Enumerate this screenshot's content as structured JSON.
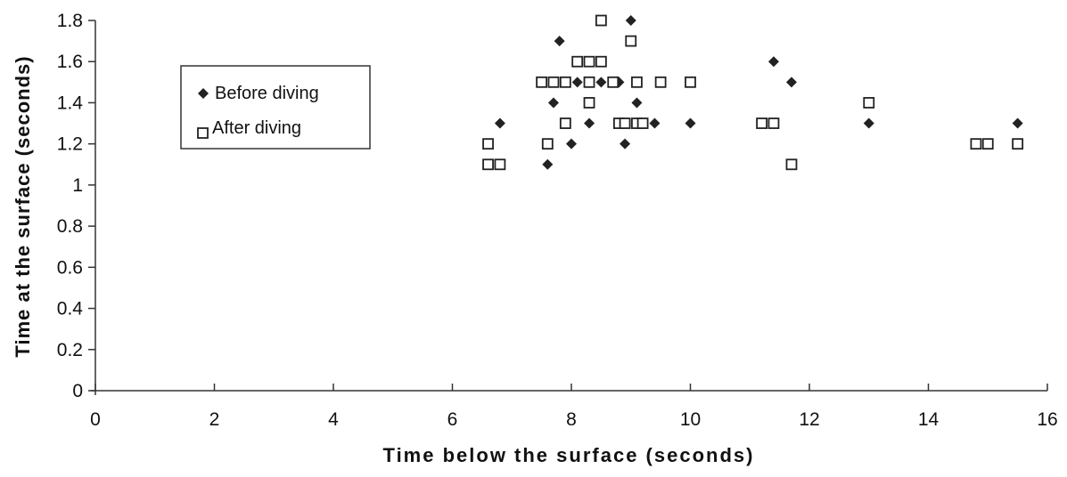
{
  "chart_data": {
    "type": "scatter",
    "title": "",
    "xlabel": "Time below the surface (seconds)",
    "ylabel": "Time at the surface (seconds)",
    "xlim": [
      0,
      16
    ],
    "ylim": [
      0,
      1.8
    ],
    "x_ticks": [
      0,
      2,
      4,
      6,
      8,
      10,
      12,
      14,
      16
    ],
    "y_ticks": [
      0,
      0.2,
      0.4,
      0.6,
      0.8,
      1,
      1.2,
      1.4,
      1.6,
      1.8
    ],
    "x_tick_labels": [
      "0",
      "2",
      "4",
      "6",
      "8",
      "10",
      "12",
      "14",
      "16"
    ],
    "y_tick_labels": [
      "0",
      "0.2",
      "0.4",
      "0.6",
      "0.8",
      "1",
      "1.2",
      "1.4",
      "1.6",
      "1.8"
    ],
    "grid": false,
    "legend_position": "left-top",
    "series": [
      {
        "name": "Before diving",
        "marker": "filled-diamond",
        "color": "#222222",
        "points": [
          [
            6.8,
            1.3
          ],
          [
            7.6,
            1.1
          ],
          [
            7.7,
            1.4
          ],
          [
            7.8,
            1.7
          ],
          [
            8.0,
            1.2
          ],
          [
            8.1,
            1.5
          ],
          [
            8.3,
            1.6
          ],
          [
            8.3,
            1.3
          ],
          [
            8.5,
            1.5
          ],
          [
            8.8,
            1.5
          ],
          [
            8.9,
            1.2
          ],
          [
            9.0,
            1.8
          ],
          [
            9.1,
            1.4
          ],
          [
            9.4,
            1.3
          ],
          [
            10.0,
            1.3
          ],
          [
            11.4,
            1.6
          ],
          [
            11.7,
            1.5
          ],
          [
            13.0,
            1.3
          ],
          [
            15.5,
            1.3
          ]
        ]
      },
      {
        "name": "After diving",
        "marker": "open-square",
        "color": "#222222",
        "points": [
          [
            6.6,
            1.2
          ],
          [
            6.6,
            1.1
          ],
          [
            6.8,
            1.1
          ],
          [
            7.5,
            1.5
          ],
          [
            7.6,
            1.2
          ],
          [
            7.7,
            1.5
          ],
          [
            7.9,
            1.5
          ],
          [
            7.9,
            1.3
          ],
          [
            8.1,
            1.6
          ],
          [
            8.3,
            1.4
          ],
          [
            8.3,
            1.5
          ],
          [
            8.3,
            1.6
          ],
          [
            8.5,
            1.6
          ],
          [
            8.5,
            1.8
          ],
          [
            8.7,
            1.5
          ],
          [
            8.8,
            1.3
          ],
          [
            8.9,
            1.3
          ],
          [
            9.0,
            1.7
          ],
          [
            9.1,
            1.3
          ],
          [
            9.1,
            1.5
          ],
          [
            9.2,
            1.3
          ],
          [
            9.5,
            1.5
          ],
          [
            10.0,
            1.5
          ],
          [
            11.2,
            1.3
          ],
          [
            11.4,
            1.3
          ],
          [
            11.7,
            1.1
          ],
          [
            13.0,
            1.4
          ],
          [
            14.8,
            1.2
          ],
          [
            15.0,
            1.2
          ],
          [
            15.5,
            1.2
          ]
        ]
      }
    ]
  }
}
